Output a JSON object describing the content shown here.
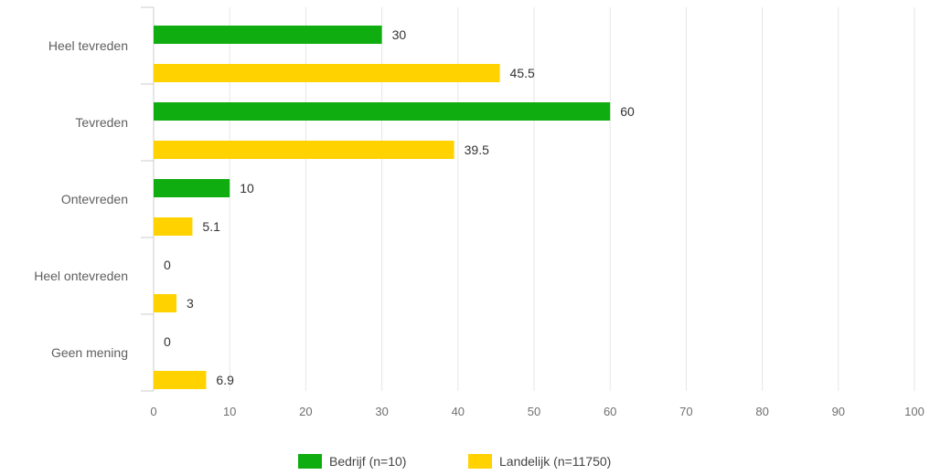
{
  "chart_data": {
    "type": "bar",
    "orientation": "horizontal",
    "categories": [
      "Heel tevreden",
      "Tevreden",
      "Ontevreden",
      "Heel ontevreden",
      "Geen mening"
    ],
    "series": [
      {
        "name": "Bedrijf (n=10)",
        "values": [
          30,
          60,
          10,
          0,
          0
        ],
        "color": "#0fad0f"
      },
      {
        "name": "Landelijk (n=11750)",
        "values": [
          45.5,
          39.5,
          5.1,
          3,
          6.9
        ],
        "color": "#ffd200"
      }
    ],
    "data_labels": [
      [
        "30",
        "60",
        "10",
        "0",
        "0"
      ],
      [
        "45.5",
        "39.5",
        "5.1",
        "3",
        "6.9"
      ]
    ],
    "title": "",
    "xlabel": "",
    "ylabel": "",
    "xlim": [
      0,
      100
    ],
    "xticks": [
      0,
      10,
      20,
      30,
      40,
      50,
      60,
      70,
      80,
      90,
      100
    ],
    "xtick_labels": [
      "0",
      "10",
      "20",
      "30",
      "40",
      "50",
      "60",
      "70",
      "80",
      "90",
      "100"
    ],
    "grid": true,
    "legend_position": "bottom"
  }
}
